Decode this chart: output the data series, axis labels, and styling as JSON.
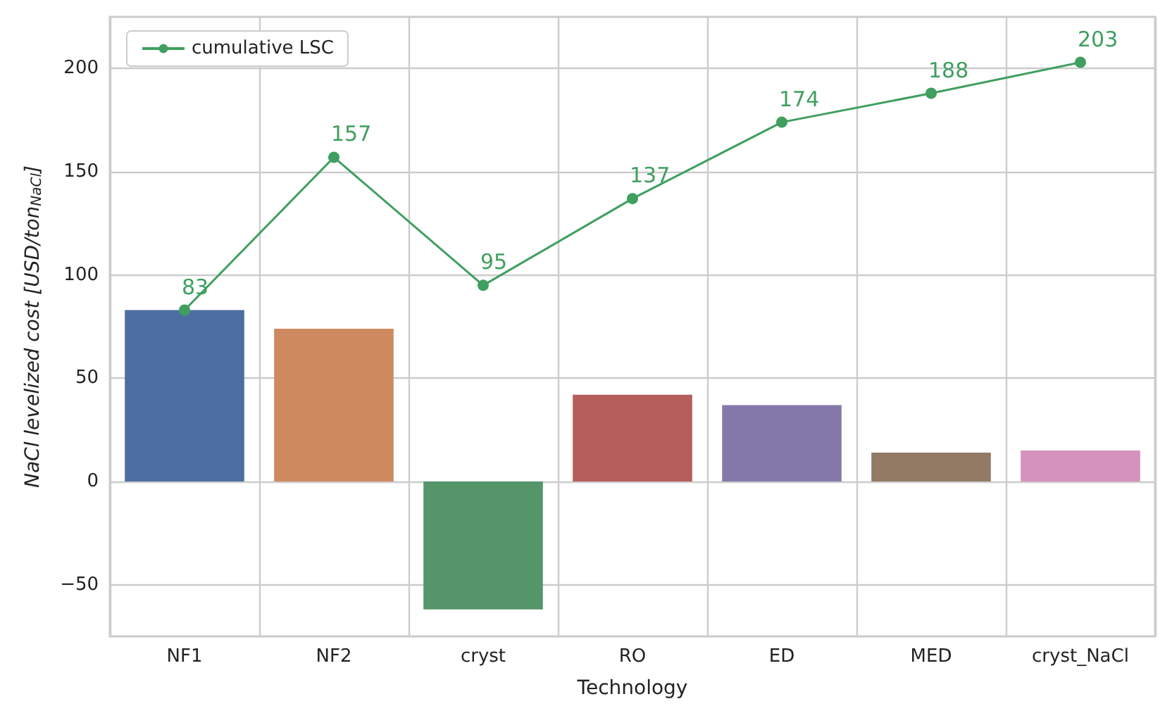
{
  "chart_data": {
    "type": "bar",
    "xlabel": "Technology",
    "ylabel": "NaCl levelized cost [USD/ton$_{NaCl}$]",
    "categories": [
      "NF1",
      "NF2",
      "cryst",
      "RO",
      "ED",
      "MED",
      "cryst_NaCl"
    ],
    "series": [
      {
        "colors": [
          "#4c6ea0",
          "#cf895e",
          "#55956a",
          "#b65e5c",
          "#8579ab",
          "#927a64",
          "#d592bf"
        ],
        "values": [
          83,
          74,
          -62,
          42,
          37,
          14,
          15
        ]
      },
      {
        "type": "line",
        "name": "cumulative LSC",
        "color": "#3f9f5f",
        "values": [
          83,
          157,
          95,
          137,
          174,
          188,
          203
        ],
        "value_labels": [
          "83",
          "157",
          "95",
          "137",
          "174",
          "188",
          "203"
        ]
      }
    ],
    "ylim": [
      -75,
      225
    ],
    "yticks": [
      -50,
      0,
      50,
      100,
      150,
      200
    ],
    "grid": true,
    "legend": "top left",
    "marker": "circle"
  }
}
